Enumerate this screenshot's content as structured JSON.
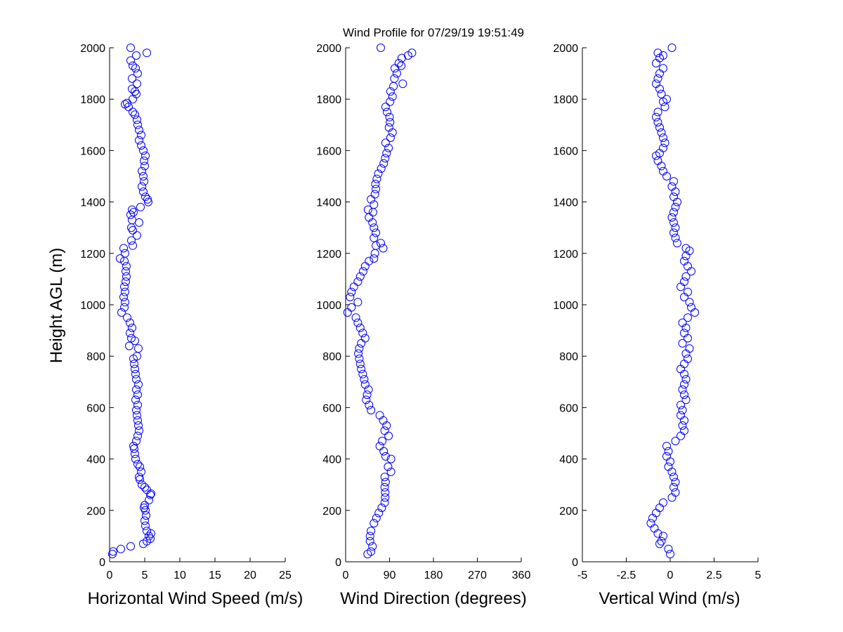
{
  "title": "Wind Profile for  07/29/19 19:51:49",
  "ylabel": "Height AGL (m)",
  "chart_data": [
    {
      "type": "scatter",
      "xlabel": "Horizontal Wind Speed (m/s)",
      "ylabel": "Height AGL (m)",
      "xlim": [
        0,
        25
      ],
      "ylim": [
        0,
        2000
      ],
      "xticks": [
        0,
        5,
        10,
        15,
        20,
        25
      ],
      "yticks": [
        0,
        200,
        400,
        600,
        800,
        1000,
        1200,
        1400,
        1600,
        1800,
        2000
      ],
      "marker_color": "#0000ff",
      "points": [
        [
          0.4,
          30
        ],
        [
          0.5,
          40
        ],
        [
          1.6,
          50
        ],
        [
          3.0,
          60
        ],
        [
          4.8,
          70
        ],
        [
          5.3,
          80
        ],
        [
          5.8,
          90
        ],
        [
          5.6,
          100
        ],
        [
          5.9,
          110
        ],
        [
          5.3,
          120
        ],
        [
          5.1,
          140
        ],
        [
          5.0,
          160
        ],
        [
          5.2,
          180
        ],
        [
          5.1,
          200
        ],
        [
          4.9,
          210
        ],
        [
          5.0,
          220
        ],
        [
          5.6,
          240
        ],
        [
          5.8,
          260
        ],
        [
          5.9,
          265
        ],
        [
          5.3,
          280
        ],
        [
          5.0,
          290
        ],
        [
          4.6,
          300
        ],
        [
          4.3,
          320
        ],
        [
          4.2,
          330
        ],
        [
          4.5,
          350
        ],
        [
          4.3,
          370
        ],
        [
          4.0,
          380
        ],
        [
          3.7,
          400
        ],
        [
          3.6,
          420
        ],
        [
          3.5,
          440
        ],
        [
          3.4,
          450
        ],
        [
          3.8,
          470
        ],
        [
          4.0,
          490
        ],
        [
          4.2,
          510
        ],
        [
          4.1,
          530
        ],
        [
          4.0,
          550
        ],
        [
          3.9,
          570
        ],
        [
          3.8,
          590
        ],
        [
          4.0,
          610
        ],
        [
          3.7,
          630
        ],
        [
          4.0,
          650
        ],
        [
          3.8,
          670
        ],
        [
          4.1,
          690
        ],
        [
          3.8,
          710
        ],
        [
          3.7,
          730
        ],
        [
          3.6,
          750
        ],
        [
          3.5,
          770
        ],
        [
          3.4,
          790
        ],
        [
          3.9,
          800
        ],
        [
          4.1,
          830
        ],
        [
          2.8,
          840
        ],
        [
          3.6,
          860
        ],
        [
          3.1,
          870
        ],
        [
          2.9,
          890
        ],
        [
          3.2,
          910
        ],
        [
          2.9,
          930
        ],
        [
          2.5,
          950
        ],
        [
          1.7,
          970
        ],
        [
          2.1,
          990
        ],
        [
          2.2,
          1010
        ],
        [
          2.0,
          1030
        ],
        [
          2.2,
          1050
        ],
        [
          2.1,
          1070
        ],
        [
          2.3,
          1090
        ],
        [
          2.4,
          1110
        ],
        [
          2.3,
          1130
        ],
        [
          2.4,
          1150
        ],
        [
          2.1,
          1170
        ],
        [
          1.5,
          1180
        ],
        [
          2.2,
          1200
        ],
        [
          2.0,
          1220
        ],
        [
          3.3,
          1230
        ],
        [
          3.1,
          1250
        ],
        [
          3.9,
          1270
        ],
        [
          3.3,
          1290
        ],
        [
          3.1,
          1300
        ],
        [
          4.2,
          1320
        ],
        [
          3.2,
          1330
        ],
        [
          3.0,
          1350
        ],
        [
          3.4,
          1360
        ],
        [
          3.2,
          1370
        ],
        [
          4.4,
          1380
        ],
        [
          5.5,
          1400
        ],
        [
          5.4,
          1410
        ],
        [
          5.1,
          1420
        ],
        [
          4.8,
          1440
        ],
        [
          4.6,
          1460
        ],
        [
          4.9,
          1480
        ],
        [
          4.8,
          1500
        ],
        [
          4.6,
          1520
        ],
        [
          5.0,
          1540
        ],
        [
          4.9,
          1560
        ],
        [
          5.1,
          1580
        ],
        [
          4.8,
          1600
        ],
        [
          4.5,
          1620
        ],
        [
          4.2,
          1640
        ],
        [
          4.5,
          1660
        ],
        [
          4.2,
          1680
        ],
        [
          4.0,
          1700
        ],
        [
          3.9,
          1720
        ],
        [
          3.6,
          1740
        ],
        [
          3.3,
          1750
        ],
        [
          2.7,
          1770
        ],
        [
          2.2,
          1780
        ],
        [
          2.5,
          1785
        ],
        [
          3.3,
          1800
        ],
        [
          3.8,
          1820
        ],
        [
          3.6,
          1830
        ],
        [
          3.2,
          1840
        ],
        [
          3.9,
          1860
        ],
        [
          3.2,
          1880
        ],
        [
          4.0,
          1900
        ],
        [
          3.7,
          1920
        ],
        [
          3.3,
          1930
        ],
        [
          3.0,
          1950
        ],
        [
          3.8,
          1970
        ],
        [
          5.3,
          1980
        ],
        [
          3.0,
          2000
        ]
      ]
    },
    {
      "type": "scatter",
      "xlabel": "Wind Direction (degrees)",
      "ylabel": "",
      "xlim": [
        0,
        360
      ],
      "ylim": [
        0,
        2000
      ],
      "xticks": [
        0,
        90,
        180,
        270,
        360
      ],
      "yticks": [
        0,
        200,
        400,
        600,
        800,
        1000,
        1200,
        1400,
        1600,
        1800,
        2000
      ],
      "marker_color": "#0000ff",
      "points": [
        [
          45,
          30
        ],
        [
          52,
          40
        ],
        [
          55,
          60
        ],
        [
          50,
          80
        ],
        [
          50,
          100
        ],
        [
          52,
          120
        ],
        [
          58,
          150
        ],
        [
          63,
          170
        ],
        [
          68,
          190
        ],
        [
          74,
          210
        ],
        [
          80,
          230
        ],
        [
          81,
          250
        ],
        [
          81,
          270
        ],
        [
          80,
          290
        ],
        [
          82,
          310
        ],
        [
          80,
          330
        ],
        [
          93,
          350
        ],
        [
          87,
          370
        ],
        [
          93,
          400
        ],
        [
          82,
          410
        ],
        [
          78,
          430
        ],
        [
          70,
          450
        ],
        [
          75,
          470
        ],
        [
          88,
          490
        ],
        [
          80,
          510
        ],
        [
          84,
          530
        ],
        [
          77,
          550
        ],
        [
          70,
          570
        ],
        [
          52,
          590
        ],
        [
          48,
          610
        ],
        [
          42,
          630
        ],
        [
          44,
          650
        ],
        [
          47,
          670
        ],
        [
          40,
          690
        ],
        [
          38,
          710
        ],
        [
          35,
          730
        ],
        [
          32,
          750
        ],
        [
          30,
          770
        ],
        [
          28,
          790
        ],
        [
          26,
          810
        ],
        [
          28,
          830
        ],
        [
          32,
          850
        ],
        [
          40,
          870
        ],
        [
          35,
          890
        ],
        [
          30,
          910
        ],
        [
          25,
          930
        ],
        [
          21,
          950
        ],
        [
          4,
          970
        ],
        [
          12,
          990
        ],
        [
          25,
          1010
        ],
        [
          9,
          1030
        ],
        [
          12,
          1050
        ],
        [
          17,
          1070
        ],
        [
          25,
          1090
        ],
        [
          30,
          1110
        ],
        [
          36,
          1130
        ],
        [
          40,
          1150
        ],
        [
          48,
          1170
        ],
        [
          58,
          1180
        ],
        [
          60,
          1200
        ],
        [
          77,
          1220
        ],
        [
          62,
          1230
        ],
        [
          72,
          1240
        ],
        [
          58,
          1260
        ],
        [
          62,
          1280
        ],
        [
          58,
          1300
        ],
        [
          55,
          1320
        ],
        [
          48,
          1340
        ],
        [
          56,
          1360
        ],
        [
          46,
          1370
        ],
        [
          58,
          1390
        ],
        [
          52,
          1410
        ],
        [
          60,
          1430
        ],
        [
          62,
          1450
        ],
        [
          61,
          1470
        ],
        [
          64,
          1490
        ],
        [
          67,
          1510
        ],
        [
          73,
          1530
        ],
        [
          78,
          1550
        ],
        [
          81,
          1570
        ],
        [
          84,
          1590
        ],
        [
          88,
          1610
        ],
        [
          82,
          1630
        ],
        [
          92,
          1650
        ],
        [
          96,
          1670
        ],
        [
          89,
          1690
        ],
        [
          91,
          1710
        ],
        [
          90,
          1730
        ],
        [
          85,
          1750
        ],
        [
          82,
          1770
        ],
        [
          91,
          1790
        ],
        [
          96,
          1810
        ],
        [
          92,
          1830
        ],
        [
          98,
          1850
        ],
        [
          117,
          1860
        ],
        [
          100,
          1880
        ],
        [
          105,
          1900
        ],
        [
          101,
          1920
        ],
        [
          114,
          1930
        ],
        [
          109,
          1940
        ],
        [
          115,
          1960
        ],
        [
          128,
          1970
        ],
        [
          136,
          1980
        ],
        [
          72,
          2000
        ]
      ]
    },
    {
      "type": "scatter",
      "xlabel": "Vertical Wind (m/s)",
      "ylabel": "",
      "xlim": [
        -5,
        5
      ],
      "ylim": [
        0,
        2000
      ],
      "xticks": [
        -5,
        -2.5,
        0,
        2.5,
        5
      ],
      "yticks": [
        0,
        200,
        400,
        600,
        800,
        1000,
        1200,
        1400,
        1600,
        1800,
        2000
      ],
      "marker_color": "#0000ff",
      "points": [
        [
          0.0,
          30
        ],
        [
          -0.1,
          50
        ],
        [
          -0.6,
          70
        ],
        [
          -0.5,
          80
        ],
        [
          -0.4,
          100
        ],
        [
          -0.7,
          110
        ],
        [
          -0.9,
          130
        ],
        [
          -1.1,
          150
        ],
        [
          -1.0,
          170
        ],
        [
          -0.8,
          190
        ],
        [
          -0.6,
          210
        ],
        [
          -0.4,
          230
        ],
        [
          0.1,
          250
        ],
        [
          0.3,
          270
        ],
        [
          0.2,
          290
        ],
        [
          0.3,
          310
        ],
        [
          0.2,
          330
        ],
        [
          0.1,
          350
        ],
        [
          -0.1,
          370
        ],
        [
          0.0,
          390
        ],
        [
          -0.2,
          410
        ],
        [
          -0.1,
          430
        ],
        [
          -0.2,
          450
        ],
        [
          0.3,
          470
        ],
        [
          0.6,
          490
        ],
        [
          0.8,
          510
        ],
        [
          0.7,
          530
        ],
        [
          0.8,
          550
        ],
        [
          0.6,
          570
        ],
        [
          0.7,
          590
        ],
        [
          0.6,
          610
        ],
        [
          0.9,
          630
        ],
        [
          0.8,
          650
        ],
        [
          0.7,
          670
        ],
        [
          0.8,
          690
        ],
        [
          0.9,
          710
        ],
        [
          0.8,
          730
        ],
        [
          0.6,
          750
        ],
        [
          0.8,
          770
        ],
        [
          1.0,
          790
        ],
        [
          0.9,
          810
        ],
        [
          1.1,
          830
        ],
        [
          0.7,
          850
        ],
        [
          1.0,
          870
        ],
        [
          0.8,
          890
        ],
        [
          0.9,
          910
        ],
        [
          0.7,
          930
        ],
        [
          1.0,
          950
        ],
        [
          1.4,
          970
        ],
        [
          1.2,
          990
        ],
        [
          1.1,
          1010
        ],
        [
          0.8,
          1030
        ],
        [
          1.0,
          1050
        ],
        [
          0.6,
          1070
        ],
        [
          0.8,
          1090
        ],
        [
          0.9,
          1110
        ],
        [
          1.2,
          1130
        ],
        [
          1.0,
          1150
        ],
        [
          0.8,
          1170
        ],
        [
          0.9,
          1190
        ],
        [
          1.1,
          1210
        ],
        [
          0.9,
          1220
        ],
        [
          0.4,
          1240
        ],
        [
          0.3,
          1260
        ],
        [
          0.2,
          1280
        ],
        [
          0.3,
          1300
        ],
        [
          0.2,
          1320
        ],
        [
          0.1,
          1340
        ],
        [
          0.2,
          1360
        ],
        [
          0.3,
          1380
        ],
        [
          0.4,
          1400
        ],
        [
          0.2,
          1420
        ],
        [
          0.3,
          1440
        ],
        [
          0.1,
          1460
        ],
        [
          0.2,
          1480
        ],
        [
          -0.2,
          1500
        ],
        [
          -0.4,
          1520
        ],
        [
          -0.5,
          1540
        ],
        [
          -0.7,
          1560
        ],
        [
          -0.8,
          1580
        ],
        [
          -0.6,
          1590
        ],
        [
          -0.4,
          1610
        ],
        [
          -0.3,
          1630
        ],
        [
          -0.4,
          1650
        ],
        [
          -0.5,
          1670
        ],
        [
          -0.6,
          1690
        ],
        [
          -0.7,
          1710
        ],
        [
          -0.8,
          1730
        ],
        [
          -0.7,
          1750
        ],
        [
          -0.3,
          1770
        ],
        [
          -0.4,
          1790
        ],
        [
          -0.2,
          1800
        ],
        [
          -0.5,
          1820
        ],
        [
          -0.6,
          1840
        ],
        [
          -0.8,
          1860
        ],
        [
          -0.7,
          1880
        ],
        [
          -0.6,
          1900
        ],
        [
          -0.4,
          1920
        ],
        [
          -0.8,
          1940
        ],
        [
          -0.6,
          1960
        ],
        [
          -0.4,
          1970
        ],
        [
          -0.7,
          1980
        ],
        [
          0.1,
          2000
        ]
      ]
    }
  ]
}
